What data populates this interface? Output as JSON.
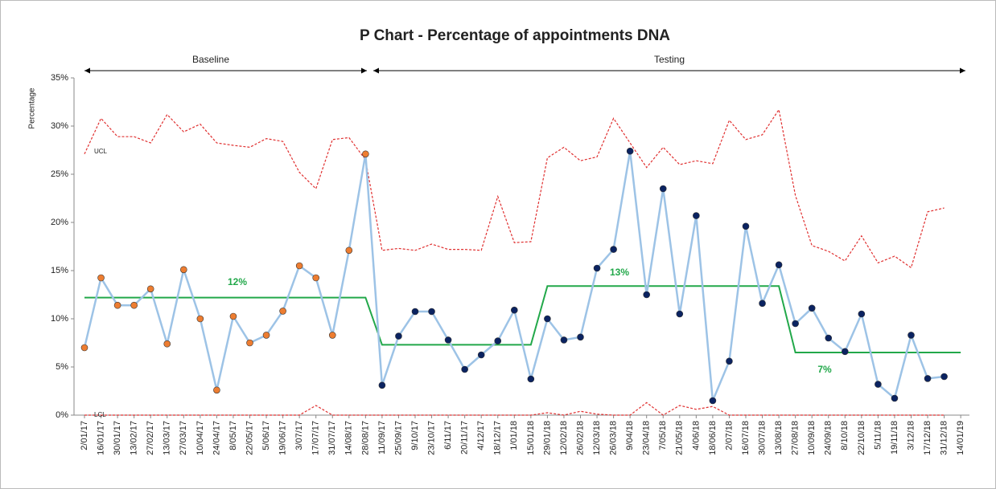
{
  "chart_data": {
    "type": "line",
    "title": "P Chart - Percentage of appointments DNA",
    "y_label": "Percentage",
    "categories": [
      "2/01/17",
      "16/01/17",
      "30/01/17",
      "13/02/17",
      "27/02/17",
      "13/03/17",
      "27/03/17",
      "10/04/17",
      "24/04/17",
      "8/05/17",
      "22/05/17",
      "5/06/17",
      "19/06/17",
      "3/07/17",
      "17/07/17",
      "31/07/17",
      "14/08/17",
      "28/08/17",
      "11/09/17",
      "25/09/17",
      "9/10/17",
      "23/10/17",
      "6/11/17",
      "20/11/17",
      "4/12/17",
      "18/12/17",
      "1/01/18",
      "15/01/18",
      "29/01/18",
      "12/02/18",
      "26/02/18",
      "12/03/18",
      "26/03/18",
      "9/04/18",
      "23/04/18",
      "7/05/18",
      "21/05/18",
      "4/06/18",
      "18/06/18",
      "2/07/18",
      "16/07/18",
      "30/07/18",
      "13/08/18",
      "27/08/18",
      "10/09/18",
      "24/09/18",
      "8/10/18",
      "22/10/18",
      "5/11/18",
      "19/11/18",
      "3/12/18",
      "17/12/18",
      "31/12/18",
      "14/01/19"
    ],
    "values": [
      7.0,
      14.25,
      11.4,
      11.4,
      13.1,
      7.4,
      15.1,
      10.0,
      2.6,
      10.25,
      7.5,
      8.3,
      10.8,
      15.5,
      14.25,
      8.3,
      17.1,
      27.1,
      3.1,
      8.2,
      10.75,
      10.75,
      7.8,
      4.75,
      6.25,
      7.7,
      10.9,
      3.75,
      10.0,
      7.8,
      8.1,
      15.25,
      17.2,
      27.4,
      12.5,
      23.5,
      10.5,
      20.7,
      1.5,
      5.6,
      19.6,
      11.6,
      15.6,
      9.5,
      11.1,
      8.0,
      6.6,
      10.5,
      3.2,
      1.75,
      8.3,
      3.8,
      4.0,
      null
    ],
    "line_color": "#9DC3E6",
    "marker_colors": [
      "#ED7D31",
      "#ED7D31",
      "#ED7D31",
      "#ED7D31",
      "#ED7D31",
      "#ED7D31",
      "#ED7D31",
      "#ED7D31",
      "#ED7D31",
      "#ED7D31",
      "#ED7D31",
      "#ED7D31",
      "#ED7D31",
      "#ED7D31",
      "#ED7D31",
      "#ED7D31",
      "#ED7D31",
      "#ED7D31",
      "#0B2361",
      "#0B2361",
      "#0B2361",
      "#0B2361",
      "#0B2361",
      "#0B2361",
      "#0B2361",
      "#0B2361",
      "#0B2361",
      "#0B2361",
      "#0B2361",
      "#0B2361",
      "#0B2361",
      "#0B2361",
      "#0B2361",
      "#0B2361",
      "#0B2361",
      "#0B2361",
      "#0B2361",
      "#0B2361",
      "#0B2361",
      "#0B2361",
      "#0B2361",
      "#0B2361",
      "#0B2361",
      "#0B2361",
      "#0B2361",
      "#0B2361",
      "#0B2361",
      "#0B2361",
      "#0B2361",
      "#0B2361",
      "#0B2361",
      "#0B2361",
      "#0B2361",
      "#0B2361"
    ],
    "ucl": [
      27.1,
      30.8,
      28.9,
      28.9,
      28.25,
      31.2,
      29.4,
      30.2,
      28.25,
      28.0,
      27.8,
      28.7,
      28.4,
      25.2,
      23.5,
      28.6,
      28.8,
      26.5,
      17.1,
      17.3,
      17.1,
      17.75,
      17.2,
      17.2,
      17.1,
      22.7,
      17.9,
      18.0,
      26.7,
      27.8,
      26.4,
      26.8,
      30.8,
      28.25,
      25.7,
      27.8,
      26.0,
      26.4,
      26.1,
      30.6,
      28.6,
      29.1,
      31.7,
      22.8,
      17.6,
      17.0,
      16.0,
      18.6,
      15.8,
      16.5,
      15.3,
      21.1,
      21.5,
      null
    ],
    "lcl": [
      0,
      0,
      0,
      0,
      0,
      0,
      0,
      0,
      0,
      0,
      0,
      0,
      0,
      0,
      1.0,
      0,
      0,
      0,
      0,
      0,
      0,
      0,
      0,
      0,
      0,
      0,
      0,
      0,
      0.25,
      0,
      0.4,
      0.1,
      0,
      0,
      1.3,
      0,
      1.0,
      0.6,
      0.9,
      0,
      0,
      0,
      0,
      0,
      0,
      0,
      0,
      0,
      0,
      0,
      0,
      0,
      0,
      null
    ],
    "limit_color": "#E03030",
    "center_line": [
      12.2,
      12.2,
      12.2,
      12.2,
      12.2,
      12.2,
      12.2,
      12.2,
      12.2,
      12.2,
      12.2,
      12.2,
      12.2,
      12.2,
      12.2,
      12.2,
      12.2,
      12.2,
      7.3,
      7.3,
      7.3,
      7.3,
      7.3,
      7.3,
      7.3,
      7.3,
      7.3,
      7.3,
      13.4,
      13.4,
      13.4,
      13.4,
      13.4,
      13.4,
      13.4,
      13.4,
      13.4,
      13.4,
      13.4,
      13.4,
      13.4,
      13.4,
      13.4,
      6.5,
      6.5,
      6.5,
      6.5,
      6.5,
      6.5,
      6.5,
      6.5,
      6.5,
      6.5,
      6.5
    ],
    "center_color": "#22A84A",
    "center_labels": [
      "12%",
      "13%",
      "7%"
    ],
    "limit_labels": [
      "UCL",
      "LCL"
    ],
    "phases": [
      "Baseline",
      "Testing"
    ],
    "ylim": [
      0,
      35
    ],
    "yticks": [
      {
        "value": 0,
        "label": "0%"
      },
      {
        "value": 5,
        "label": "5%"
      },
      {
        "value": 10,
        "label": "10%"
      },
      {
        "value": 15,
        "label": "15%"
      },
      {
        "value": 20,
        "label": "20%"
      },
      {
        "value": 25,
        "label": "25%"
      },
      {
        "value": 30,
        "label": "30%"
      },
      {
        "value": 35,
        "label": "35%"
      }
    ]
  }
}
